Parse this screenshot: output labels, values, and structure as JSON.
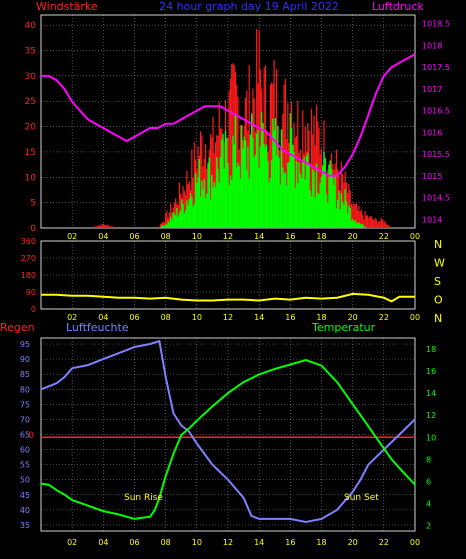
{
  "header": {
    "left_label": "Windstärke",
    "title": "24 hour graph day  19 April 2022",
    "right_label": "Luftdruck"
  },
  "colors": {
    "background": "#000000",
    "frame": "#cfcfcf",
    "wind_label": "#ff2020",
    "title": "#3030ff",
    "pressure": "#ff00ff",
    "wind_gust": "#ff1a1a",
    "wind_avg": "#00ff00",
    "direction": "#ffff00",
    "direction_axis": "#ffff00",
    "rain": "#ff2020",
    "humidity": "#8080ff",
    "temperature": "#00ff00",
    "x_ticks": "#ffff00",
    "left_ticks": "#ff2020",
    "right_ticks_top": "#ff00ff",
    "left_ticks_bottom": "#8080ff",
    "right_ticks_bottom": "#00ff00",
    "sun_label": "#ffff00"
  },
  "x_tick_labels": [
    "02",
    "04",
    "06",
    "08",
    "10",
    "12",
    "14",
    "16",
    "18",
    "20",
    "22",
    "00"
  ],
  "sun": {
    "rise_label": "Sun Rise",
    "set_label": "Sun Set"
  },
  "chart_data": [
    {
      "type": "bar",
      "panel": "wind_pressure",
      "left_axis": {
        "title": "Windstärke",
        "ylim": [
          0,
          42
        ],
        "ticks": [
          0,
          5,
          10,
          15,
          20,
          25,
          30,
          35,
          40
        ]
      },
      "right_axis": {
        "title": "Luftdruck",
        "ylim": [
          1013.8,
          1018.7
        ],
        "ticks": [
          "1014",
          "1014.5",
          "1015",
          "1015.5",
          "1016",
          "1016.5",
          "1017",
          "1017.5",
          "1018",
          "1018.5"
        ]
      },
      "x_hours": [
        0,
        24
      ],
      "series": [
        {
          "name": "Windstärke",
          "kind": "gust_bars",
          "x": [
            0,
            1,
            2,
            3,
            4,
            5,
            6,
            7,
            7.5,
            8,
            8.5,
            9,
            9.5,
            10,
            10.5,
            11,
            11.5,
            12,
            12.5,
            13,
            13.5,
            14,
            14.5,
            15,
            15.5,
            16,
            16.5,
            17,
            17.5,
            18,
            18.5,
            19,
            19.5,
            20,
            20.5,
            21,
            21.5,
            22,
            22.5,
            23,
            23.5,
            24
          ],
          "values": [
            0,
            0,
            0,
            0,
            1,
            0,
            0,
            0,
            0,
            3,
            6,
            10,
            14,
            20,
            24,
            22,
            28,
            30,
            36,
            30,
            34,
            42,
            32,
            36,
            30,
            36,
            28,
            30,
            26,
            24,
            20,
            16,
            12,
            6,
            4,
            3,
            2,
            2,
            0,
            0,
            0,
            0
          ]
        },
        {
          "name": "",
          "kind": "avg_bars",
          "x": [
            0,
            1,
            2,
            3,
            4,
            5,
            6,
            7,
            7.5,
            8,
            8.5,
            9,
            9.5,
            10,
            10.5,
            11,
            11.5,
            12,
            12.5,
            13,
            13.5,
            14,
            14.5,
            15,
            15.5,
            16,
            16.5,
            17,
            17.5,
            18,
            18.5,
            19,
            19.5,
            20,
            20.5,
            21,
            21.5,
            22,
            22.5,
            23,
            23.5,
            24
          ],
          "values": [
            0,
            0,
            0,
            0,
            0,
            0,
            0,
            0,
            0,
            1,
            3,
            5,
            8,
            12,
            14,
            13,
            16,
            18,
            20,
            18,
            20,
            24,
            19,
            20,
            18,
            20,
            17,
            17,
            15,
            14,
            12,
            9,
            7,
            3,
            1,
            0,
            0,
            0,
            0,
            0,
            0,
            0
          ]
        },
        {
          "name": "Luftdruck",
          "kind": "line",
          "axis": "right",
          "x": [
            0,
            0.5,
            1,
            1.5,
            2,
            2.5,
            3,
            3.5,
            4,
            4.5,
            5,
            5.5,
            6,
            6.5,
            7,
            7.5,
            8,
            8.5,
            9,
            9.5,
            10,
            10.5,
            11,
            11.5,
            12,
            12.5,
            13,
            13.5,
            14,
            14.5,
            15,
            15.5,
            16,
            16.5,
            17,
            17.5,
            18,
            18.5,
            19,
            19.5,
            20,
            20.5,
            21,
            21.5,
            22,
            22.5,
            23,
            23.5,
            24
          ],
          "values": [
            1017.3,
            1017.3,
            1017.2,
            1017.0,
            1016.7,
            1016.5,
            1016.3,
            1016.2,
            1016.1,
            1016.0,
            1015.9,
            1015.8,
            1015.9,
            1016.0,
            1016.1,
            1016.1,
            1016.2,
            1016.2,
            1016.3,
            1016.4,
            1016.5,
            1016.6,
            1016.6,
            1016.6,
            1016.5,
            1016.4,
            1016.3,
            1016.2,
            1016.1,
            1016.0,
            1015.8,
            1015.6,
            1015.5,
            1015.4,
            1015.3,
            1015.2,
            1015.1,
            1015.0,
            1015.0,
            1015.2,
            1015.5,
            1015.9,
            1016.4,
            1016.9,
            1017.3,
            1017.5,
            1017.6,
            1017.7,
            1017.8
          ]
        }
      ]
    },
    {
      "type": "line",
      "panel": "wind_direction",
      "left_axis": {
        "ylim": [
          0,
          360
        ],
        "ticks": [
          0,
          90,
          180,
          270,
          360
        ]
      },
      "right_axis_labels": [
        "N",
        "W",
        "S",
        "O",
        "N"
      ],
      "x_hours": [
        0,
        24
      ],
      "series": [
        {
          "name": "",
          "x": [
            0,
            1,
            2,
            3,
            4,
            5,
            6,
            7,
            8,
            9,
            10,
            11,
            12,
            13,
            14,
            15,
            16,
            17,
            18,
            19,
            20,
            21,
            22,
            22.5,
            23,
            24
          ],
          "values": [
            75,
            75,
            70,
            70,
            65,
            60,
            60,
            55,
            60,
            50,
            45,
            45,
            50,
            50,
            45,
            55,
            50,
            60,
            55,
            60,
            80,
            75,
            60,
            40,
            65,
            65
          ]
        }
      ]
    },
    {
      "type": "line",
      "panel": "humidity_temperature",
      "left_axis": {
        "title": "Luftfeuchte",
        "ylim": [
          33,
          97
        ],
        "ticks": [
          35,
          40,
          45,
          50,
          55,
          60,
          65,
          70,
          75,
          80,
          85,
          90,
          95
        ]
      },
      "right_axis": {
        "title": "Temperatur",
        "ylim": [
          1.5,
          19
        ],
        "ticks": [
          2,
          4,
          6,
          8,
          10,
          12,
          14,
          16,
          18
        ]
      },
      "rain_axis": {
        "title": "Regen",
        "value_label": "0"
      },
      "x_hours": [
        0,
        24
      ],
      "series": [
        {
          "name": "Luftfeuchte",
          "axis": "left",
          "x": [
            0,
            0.5,
            1,
            1.5,
            2,
            3,
            4,
            5,
            6,
            7,
            7.3,
            7.6,
            8,
            8.5,
            9,
            9.5,
            10,
            11,
            12,
            13,
            13.5,
            14,
            15,
            16,
            17,
            18,
            19,
            19.5,
            20,
            20.5,
            21,
            22,
            23,
            24
          ],
          "values": [
            80,
            81,
            82,
            84,
            87,
            88,
            90,
            92,
            94,
            95,
            95.5,
            96,
            84,
            72,
            68,
            66,
            62,
            55,
            50,
            44,
            38,
            37,
            37,
            37,
            36,
            37,
            40,
            43,
            46,
            50,
            55,
            60,
            65,
            70
          ]
        },
        {
          "name": "Temperatur",
          "axis": "right",
          "x": [
            0,
            0.5,
            1,
            1.5,
            2,
            3,
            4,
            5,
            5.5,
            6,
            6.5,
            7,
            7.3,
            7.6,
            8,
            8.5,
            9,
            9.5,
            10,
            11,
            12,
            13,
            14,
            15,
            16,
            17,
            18,
            19,
            20,
            20.5,
            21,
            21.5,
            22,
            22.5,
            23,
            24
          ],
          "values": [
            5.8,
            5.7,
            5.2,
            4.8,
            4.3,
            3.8,
            3.3,
            3.0,
            2.8,
            2.6,
            2.7,
            2.8,
            3.4,
            4.5,
            6.5,
            8.5,
            10.2,
            10.8,
            11.5,
            12.8,
            14.0,
            15.0,
            15.7,
            16.2,
            16.6,
            17.0,
            16.5,
            15.0,
            13.0,
            12.0,
            11.0,
            10.0,
            9.0,
            8.0,
            7.2,
            5.7
          ]
        },
        {
          "name": "Regen",
          "axis": "rain",
          "x": [
            0,
            24
          ],
          "values": [
            0,
            0
          ]
        }
      ]
    }
  ]
}
